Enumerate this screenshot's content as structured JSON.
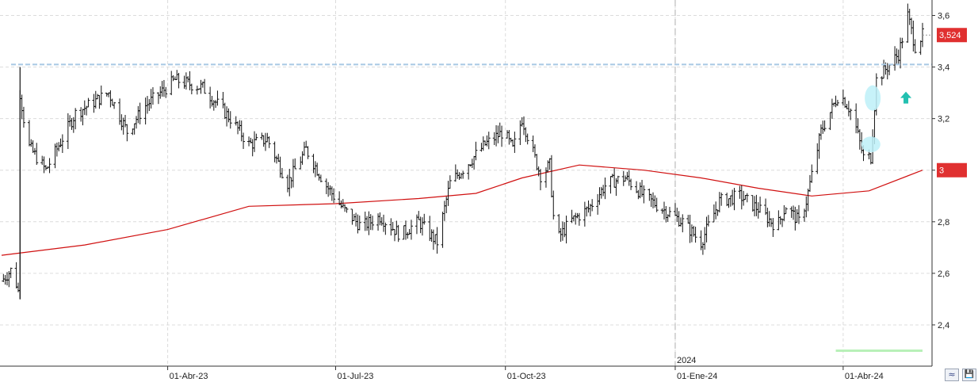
{
  "chart_data": {
    "type": "ohlc",
    "y_range": [
      2.24,
      3.66
    ],
    "y_ticks": [
      "2,4",
      "2,6",
      "2,8",
      "3",
      "3,2",
      "3,4",
      "3,6"
    ],
    "y_tick_values": [
      2.4,
      2.6,
      2.8,
      3.0,
      3.2,
      3.4,
      3.6
    ],
    "x_range": [
      "2023-01-01",
      "2024-05-14"
    ],
    "x_labels": [
      {
        "text": "01-Abr-23",
        "date": "2023-04-01"
      },
      {
        "text": "01-Jul-23",
        "date": "2023-07-01"
      },
      {
        "text": "01-Oct-23",
        "date": "2023-10-01"
      },
      {
        "text": "01-Ene-24",
        "date": "2024-01-01"
      },
      {
        "text": "01-Abr-24",
        "date": "2024-04-01"
      }
    ],
    "year_marker": {
      "text": "2024",
      "date": "2024-01-01"
    },
    "price_key_points": [
      [
        "2023-01-01",
        2.57
      ],
      [
        "2023-01-07",
        2.62
      ],
      [
        "2023-01-10",
        2.53
      ],
      [
        "2023-01-11",
        3.3
      ],
      [
        "2023-01-15",
        3.1
      ],
      [
        "2023-01-25",
        3.0
      ],
      [
        "2023-02-10",
        3.22
      ],
      [
        "2023-02-28",
        3.3
      ],
      [
        "2023-03-10",
        3.15
      ],
      [
        "2023-03-20",
        3.25
      ],
      [
        "2023-04-05",
        3.35
      ],
      [
        "2023-04-20",
        3.32
      ],
      [
        "2023-05-05",
        3.2
      ],
      [
        "2023-05-15",
        3.1
      ],
      [
        "2023-05-25",
        3.12
      ],
      [
        "2023-06-05",
        2.95
      ],
      [
        "2023-06-15",
        3.08
      ],
      [
        "2023-06-25",
        2.95
      ],
      [
        "2023-07-05",
        2.85
      ],
      [
        "2023-07-15",
        2.78
      ],
      [
        "2023-07-25",
        2.82
      ],
      [
        "2023-08-05",
        2.75
      ],
      [
        "2023-08-15",
        2.8
      ],
      [
        "2023-08-25",
        2.72
      ],
      [
        "2023-09-01",
        2.95
      ],
      [
        "2023-09-10",
        3.02
      ],
      [
        "2023-09-20",
        3.1
      ],
      [
        "2023-09-30",
        3.15
      ],
      [
        "2023-10-05",
        3.08
      ],
      [
        "2023-10-10",
        3.2
      ],
      [
        "2023-10-20",
        2.98
      ],
      [
        "2023-10-25",
        3.02
      ],
      [
        "2023-10-28",
        2.72
      ],
      [
        "2023-11-05",
        2.8
      ],
      [
        "2023-11-15",
        2.85
      ],
      [
        "2023-11-25",
        2.95
      ],
      [
        "2023-12-05",
        2.97
      ],
      [
        "2023-12-15",
        2.9
      ],
      [
        "2023-12-25",
        2.85
      ],
      [
        "2024-01-05",
        2.8
      ],
      [
        "2024-01-15",
        2.72
      ],
      [
        "2024-01-25",
        2.88
      ],
      [
        "2024-02-05",
        2.9
      ],
      [
        "2024-02-15",
        2.85
      ],
      [
        "2024-02-25",
        2.78
      ],
      [
        "2024-03-01",
        2.86
      ],
      [
        "2024-03-08",
        2.8
      ],
      [
        "2024-03-12",
        2.88
      ],
      [
        "2024-03-20",
        3.15
      ],
      [
        "2024-03-30",
        3.3
      ],
      [
        "2024-04-06",
        3.22
      ],
      [
        "2024-04-12",
        3.05
      ],
      [
        "2024-04-16",
        3.05
      ],
      [
        "2024-04-19",
        3.35
      ],
      [
        "2024-04-25",
        3.4
      ],
      [
        "2024-05-01",
        3.45
      ],
      [
        "2024-05-06",
        3.6
      ],
      [
        "2024-05-10",
        3.48
      ],
      [
        "2024-05-14",
        3.524
      ]
    ],
    "moving_average": {
      "color": "#d01010",
      "points": [
        [
          "2023-01-01",
          2.67
        ],
        [
          "2023-02-15",
          2.71
        ],
        [
          "2023-04-01",
          2.77
        ],
        [
          "2023-05-15",
          2.86
        ],
        [
          "2023-07-01",
          2.87
        ],
        [
          "2023-08-15",
          2.89
        ],
        [
          "2023-09-15",
          2.91
        ],
        [
          "2023-10-10",
          2.97
        ],
        [
          "2023-11-10",
          3.02
        ],
        [
          "2023-12-15",
          3.0
        ],
        [
          "2024-01-15",
          2.97
        ],
        [
          "2024-02-15",
          2.93
        ],
        [
          "2024-03-15",
          2.9
        ],
        [
          "2024-04-15",
          2.92
        ],
        [
          "2024-05-14",
          3.0
        ]
      ]
    },
    "resistance_line": {
      "value": 3.41,
      "color": "#a8c8e4"
    },
    "support_line": {
      "value": 2.3,
      "start": "2024-03-28",
      "end": "2024-05-14",
      "color": "#b8f0b8"
    },
    "last_price": {
      "value": 3.524,
      "label": "3,524",
      "color": "#e03030"
    },
    "ma_value": {
      "value": 3.0,
      "label": "3",
      "color": "#e03030"
    },
    "annotations": [
      {
        "type": "ellipse",
        "date": "2024-04-17",
        "value": 3.28,
        "color": "#bdf0f8"
      },
      {
        "type": "ellipse",
        "date": "2024-04-16",
        "value": 3.1,
        "color": "#bdf0f8"
      },
      {
        "type": "arrow-up",
        "date": "2024-05-05",
        "value": 3.28,
        "color": "#22c0b0"
      }
    ],
    "grid": true
  },
  "toolbar": {
    "scale_icon": "≈",
    "save_icon": "💾"
  }
}
